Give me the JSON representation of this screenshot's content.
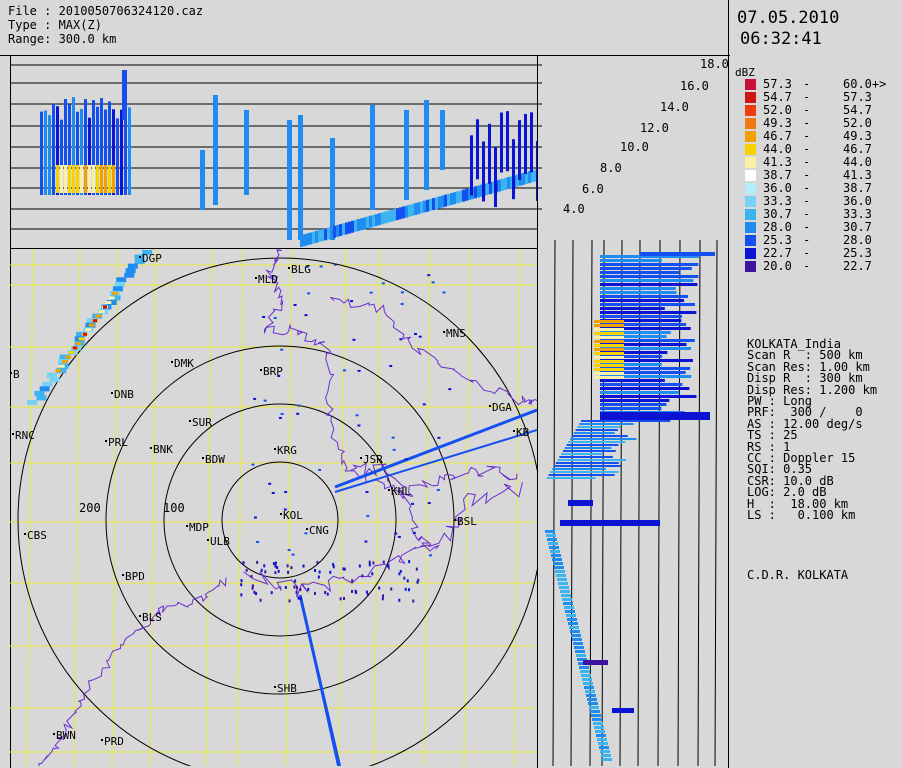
{
  "header": {
    "file": "File : 2010050706324120.caz",
    "type": "Type : MAX(Z)",
    "range": "Range: 300.0 km"
  },
  "datetime": {
    "date": "07.05.2010",
    "time": "06:32:41"
  },
  "legend": {
    "title": "dBZ",
    "entries": [
      {
        "lo": "57.3",
        "hi": "60.0+>",
        "color": "#c8103c"
      },
      {
        "lo": "54.7",
        "hi": "57.3",
        "color": "#d01414"
      },
      {
        "lo": "52.0",
        "hi": "54.7",
        "color": "#f03c0a"
      },
      {
        "lo": "49.3",
        "hi": "52.0",
        "color": "#f07814"
      },
      {
        "lo": "46.7",
        "hi": "49.3",
        "color": "#f0a000"
      },
      {
        "lo": "44.0",
        "hi": "46.7",
        "color": "#f5d200"
      },
      {
        "lo": "41.3",
        "hi": "44.0",
        "color": "#f8f0a8"
      },
      {
        "lo": "38.7",
        "hi": "41.3",
        "color": "#ffffff"
      },
      {
        "lo": "36.0",
        "hi": "38.7",
        "color": "#b4eefa"
      },
      {
        "lo": "33.3",
        "hi": "36.0",
        "color": "#78d2f5"
      },
      {
        "lo": "30.7",
        "hi": "33.3",
        "color": "#3cb4f0"
      },
      {
        "lo": "28.0",
        "hi": "30.7",
        "color": "#1e8cf0"
      },
      {
        "lo": "25.3",
        "hi": "28.0",
        "color": "#1450f0"
      },
      {
        "lo": "22.7",
        "hi": "25.3",
        "color": "#0a14d2"
      },
      {
        "lo": "20.0",
        "hi": "22.7",
        "color": "#3c14a0"
      }
    ]
  },
  "params": [
    "KOLKATA_India",
    "Scan R  : 500 km",
    "Scan Res: 1.00 km",
    "Disp R  : 300 km",
    "Disp Res: 1.200 km",
    "PW : Long",
    "PRF:  300 /    0",
    "AS : 12.00 deg/s",
    "TS : 25",
    "RS : 1",
    "CC : Doppler 15",
    "SQI: 0.35",
    "CSR: 10.0 dB",
    "LOG: 2.0 dB",
    "H  :  18.00 km",
    "LS :   0.100 km"
  ],
  "center_name": "C.D.R. KOLKATA",
  "height_labels": [
    "18.0",
    "16.0",
    "14.0",
    "12.0",
    "10.0",
    "8.0",
    "6.0",
    "4.0"
  ],
  "range_labels": [
    "200",
    "100"
  ],
  "stations": [
    {
      "code": "BLG"
    },
    {
      "code": "MLD"
    },
    {
      "code": "MNS"
    },
    {
      "code": "DMK"
    },
    {
      "code": "BRP"
    },
    {
      "code": "DNB"
    },
    {
      "code": "SUR"
    },
    {
      "code": "DGA"
    },
    {
      "code": "RNC"
    },
    {
      "code": "PRL"
    },
    {
      "code": "BNK"
    },
    {
      "code": "BDW"
    },
    {
      "code": "KRG"
    },
    {
      "code": "JSR"
    },
    {
      "code": "KHL"
    },
    {
      "code": "BSL"
    },
    {
      "code": "CBS"
    },
    {
      "code": "MDP"
    },
    {
      "code": "ULB"
    },
    {
      "code": "KOL"
    },
    {
      "code": "CNG"
    },
    {
      "code": "BPD"
    },
    {
      "code": "BLS"
    },
    {
      "code": "SHB"
    },
    {
      "code": "BWN"
    },
    {
      "code": "PRD"
    },
    {
      "code": "DGP"
    },
    {
      "code": "B"
    },
    {
      "code": "KB"
    }
  ]
}
